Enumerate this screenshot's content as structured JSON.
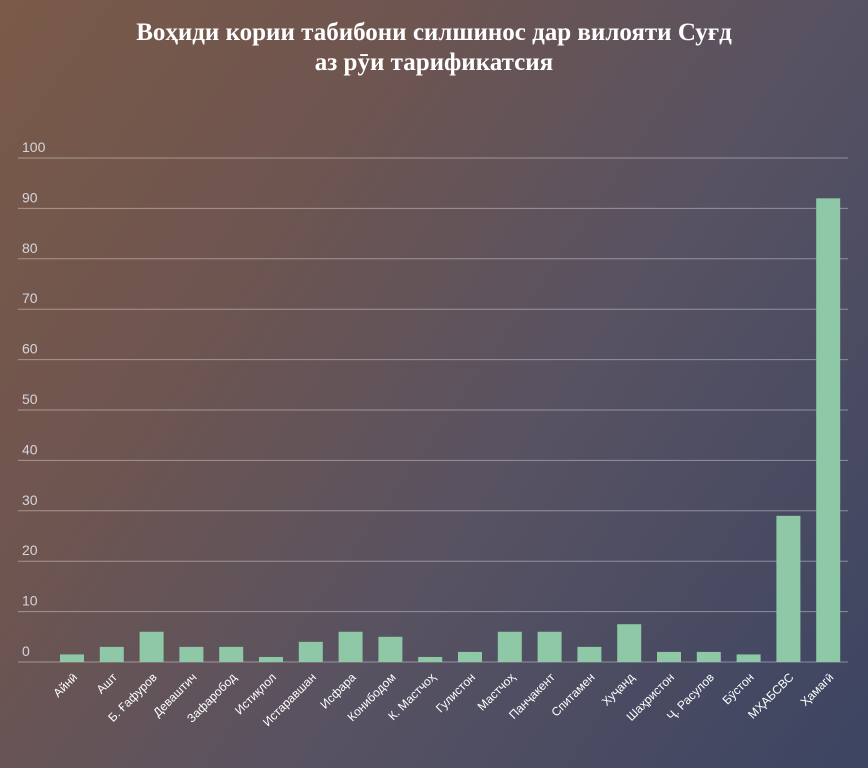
{
  "chart_data": {
    "type": "bar",
    "title_lines": [
      "Воҳиди кории табибони силшинос дар вилояти Суғд",
      "аз рӯи тарификатсия"
    ],
    "categories": [
      "Айнӣ",
      "Ашт",
      "Б. Ғафуров",
      "Деваштич",
      "Зафаробод",
      "Истиқлол",
      "Истаравшан",
      "Исфара",
      "Конибодом",
      "К. Мастчоҳ",
      "Гулистон",
      "Мастчоҳ",
      "Панҷакент",
      "Спитамен",
      "Хуҷанд",
      "Шаҳристон",
      "Ҷ. Расулов",
      "Бӯстон",
      "МҲАБСВС",
      "Ҳамагӣ"
    ],
    "values": [
      1.5,
      3,
      6,
      3,
      3,
      1,
      4,
      6,
      5,
      1,
      2,
      6,
      6,
      3,
      7.5,
      2,
      2,
      1.5,
      29,
      92
    ],
    "ylim": [
      0,
      100
    ],
    "yticks": [
      0,
      10,
      20,
      30,
      40,
      50,
      60,
      70,
      80,
      90,
      100
    ],
    "grid": true,
    "bar_color": "#8ec8a6"
  }
}
